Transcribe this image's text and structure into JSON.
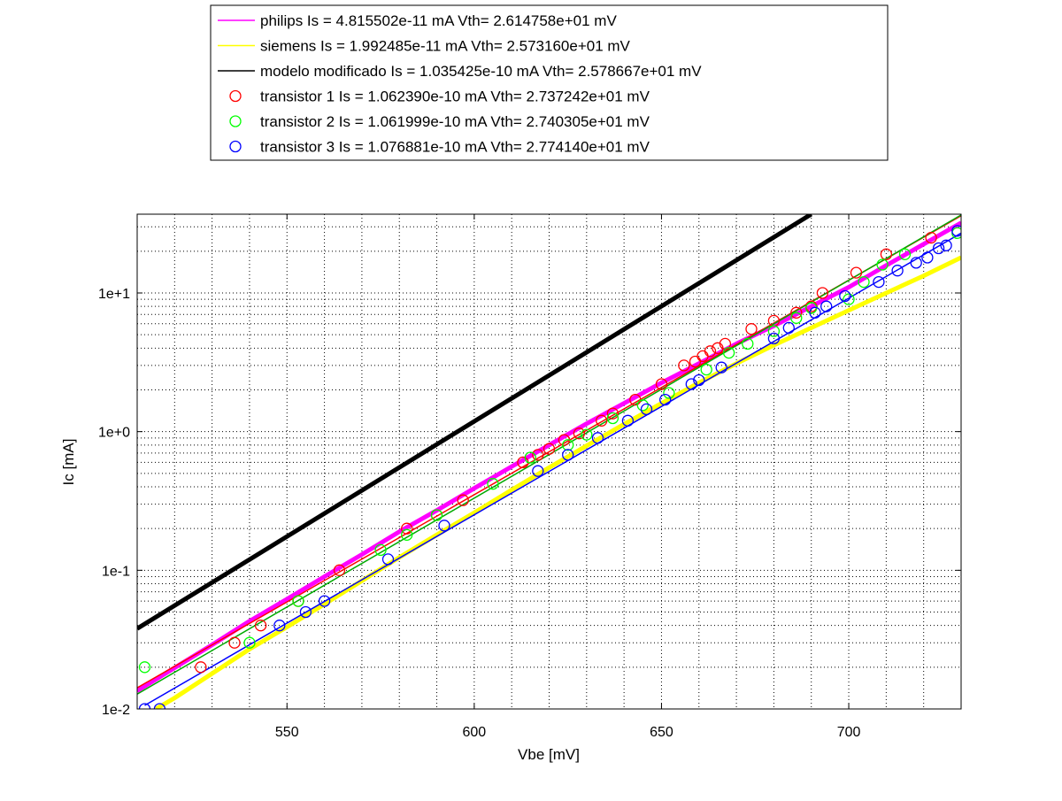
{
  "chart_data": {
    "type": "line",
    "title": "",
    "xlabel": "Vbe [mV]",
    "ylabel": "Ic [mA]",
    "xlim": [
      510,
      730
    ],
    "ylim": [
      0.01,
      37
    ],
    "yscale": "log",
    "grid": true,
    "legend_position": "top-center",
    "x_ticks": [
      {
        "value": 550,
        "label": "550"
      },
      {
        "value": 600,
        "label": "600"
      },
      {
        "value": 650,
        "label": "650"
      },
      {
        "value": 700,
        "label": "700"
      }
    ],
    "y_ticks": [
      {
        "value": 0.01,
        "label": "1e-2"
      },
      {
        "value": 0.1,
        "label": "1e-1"
      },
      {
        "value": 1,
        "label": "1e+0"
      },
      {
        "value": 10,
        "label": "1e+1"
      }
    ],
    "series": [
      {
        "name": "philips Is = 4.815502e-11 mA  Vth= 2.614758e+01 mV",
        "style": "line",
        "color": "#ff00ff",
        "x": [
          510,
          520,
          530,
          540,
          550,
          560,
          570,
          580,
          590,
          600,
          610,
          620,
          630,
          640,
          650,
          660,
          670,
          680,
          690,
          700,
          710,
          720,
          730
        ],
        "y": [
          0.0135,
          0.0198,
          0.029,
          0.043,
          0.062,
          0.09,
          0.13,
          0.19,
          0.27,
          0.39,
          0.56,
          0.8,
          1.14,
          1.6,
          2.25,
          3.1,
          4.3,
          5.8,
          8.0,
          11.0,
          15.8,
          22.5,
          32
        ]
      },
      {
        "name": "siemens Is = 1.992485e-11 mA  Vth= 2.573160e+01 mV",
        "style": "line",
        "color": "#ffff00",
        "x": [
          515,
          520,
          530,
          540,
          550,
          560,
          570,
          580,
          590,
          600,
          610,
          620,
          630,
          640,
          650,
          660,
          670,
          680,
          690,
          700,
          710,
          720,
          730
        ],
        "y": [
          0.01,
          0.012,
          0.018,
          0.027,
          0.039,
          0.057,
          0.084,
          0.124,
          0.18,
          0.26,
          0.38,
          0.55,
          0.79,
          1.13,
          1.6,
          2.25,
          3.1,
          4.2,
          5.6,
          7.5,
          10.0,
          13.3,
          18
        ]
      },
      {
        "name": "modelo modificado Is = 1.035425e-10 mA  Vth= 2.578667e+01 mV",
        "style": "line",
        "color": "#000000",
        "x": [
          510,
          690
        ],
        "y": [
          0.038,
          37
        ]
      },
      {
        "name": "transistor 1 Is = 1.062390e-10 mA  Vth= 2.737242e+01 mV",
        "style": "markers",
        "color": "#ff0000",
        "x": [
          527,
          536,
          543,
          553,
          564,
          582,
          590,
          597,
          613,
          617,
          620,
          624,
          628,
          634,
          637,
          643,
          650,
          656,
          659,
          661,
          663,
          665,
          667,
          674,
          680,
          686,
          690,
          693,
          702,
          710,
          722
        ],
        "y": [
          0.02,
          0.03,
          0.04,
          0.06,
          0.1,
          0.2,
          0.25,
          0.32,
          0.6,
          0.68,
          0.75,
          0.87,
          0.97,
          1.2,
          1.35,
          1.7,
          2.2,
          3.0,
          3.2,
          3.5,
          3.8,
          4.0,
          4.3,
          5.5,
          6.3,
          7.2,
          8.0,
          10.0,
          14.0,
          19.0,
          25.0
        ]
      },
      {
        "name": "transistor 2 Is = 1.061999e-10 mA  Vth= 2.740305e+01 mV",
        "style": "markers",
        "color": "#00ff00",
        "x": [
          512,
          540,
          553,
          575,
          582,
          590,
          605,
          615,
          625,
          630,
          637,
          645,
          652,
          662,
          668,
          673,
          680,
          686,
          690,
          700,
          704,
          709,
          715,
          729
        ],
        "y": [
          0.02,
          0.03,
          0.06,
          0.14,
          0.18,
          0.25,
          0.42,
          0.65,
          0.8,
          0.95,
          1.25,
          1.55,
          1.9,
          2.8,
          3.7,
          4.3,
          5.3,
          6.6,
          7.8,
          9.0,
          12.0,
          16.0,
          19.0,
          27.0
        ]
      },
      {
        "name": "transistor 3 Is = 1.076881e-10 mA  Vth= 2.774140e+01 mV",
        "style": "markers",
        "color": "#0000ff",
        "x": [
          512,
          516,
          548,
          555,
          560,
          577,
          592,
          617,
          625,
          633,
          641,
          646,
          651,
          658,
          660,
          666,
          680,
          684,
          691,
          694,
          699,
          708,
          713,
          718,
          721,
          724,
          726,
          729
        ],
        "y": [
          0.01,
          0.01,
          0.04,
          0.05,
          0.06,
          0.12,
          0.21,
          0.52,
          0.68,
          0.9,
          1.2,
          1.45,
          1.7,
          2.2,
          2.35,
          2.9,
          4.7,
          5.6,
          7.2,
          8.0,
          9.5,
          12.0,
          14.5,
          16.5,
          18.0,
          21.0,
          22.0,
          28.0
        ]
      }
    ]
  }
}
